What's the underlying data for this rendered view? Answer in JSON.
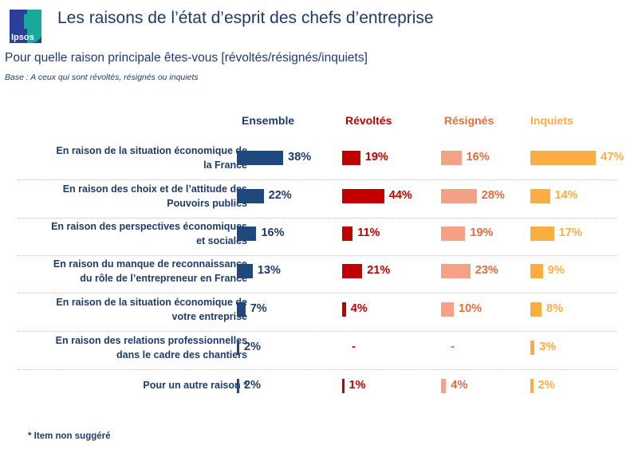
{
  "header": {
    "logo_text": "Ipsos",
    "title": "Les raisons de l’état d’esprit des chefs d’entreprise",
    "subtitle": "Pour quelle raison principale êtes-vous [révoltés/résignés/inquiets]",
    "base": "Base : A ceux qui sont révoltés, résignés ou inquiets"
  },
  "colors": {
    "Ensemble": "#1f497d",
    "Révoltés": "#c00000",
    "Résignés": "#f4a185",
    "Inquiets": "#fbad42",
    "Ensemble_text": "#1f3b6b",
    "Révoltés_text": "#c00000",
    "Résignés_text": "#e46c3f",
    "Inquiets_text": "#fbad42"
  },
  "footnote": "* Item non suggéré",
  "chart_data": {
    "type": "bar",
    "orientation": "horizontal",
    "title": "Les raisons de l’état d’esprit des chefs d’entreprise",
    "subtitle": "Pour quelle raison principale êtes-vous [révoltés/résignés/inquiets]",
    "note": "Base : A ceux qui sont révoltés, résignés ou inquiets",
    "unit": "%",
    "categories": [
      [
        "En raison de la situation économique de",
        "la France"
      ],
      [
        "En raison des choix et de l’attitude des",
        "Pouvoirs publics"
      ],
      [
        "En raison des perspectives économiques",
        "et sociales"
      ],
      [
        "En raison du manque de reconnaissance",
        "du rôle de l’entrepreneur en France"
      ],
      [
        "En raison de la situation économique de",
        "votre entreprise"
      ],
      [
        "En raison des relations professionnelles",
        "dans le cadre des chantiers"
      ],
      [
        "Pour un autre raison *"
      ]
    ],
    "series": [
      {
        "name": "Ensemble",
        "values": [
          38,
          22,
          16,
          13,
          7,
          2,
          2
        ],
        "labels": [
          "38%",
          "22%",
          "16%",
          "13%",
          "7%",
          "2%",
          "2%"
        ]
      },
      {
        "name": "Révoltés",
        "values": [
          19,
          44,
          11,
          21,
          4,
          null,
          1
        ],
        "labels": [
          "19%",
          "44%",
          "11%",
          "21%",
          "4%",
          "-",
          "1%"
        ]
      },
      {
        "name": "Résignés",
        "values": [
          16,
          28,
          19,
          23,
          10,
          null,
          4
        ],
        "labels": [
          "16%",
          "28%",
          "19%",
          "23%",
          "10%",
          "-",
          "4%"
        ]
      },
      {
        "name": "Inquiets",
        "values": [
          47,
          14,
          17,
          9,
          8,
          3,
          2
        ],
        "labels": [
          "47%",
          "14%",
          "17%",
          "9%",
          "8%",
          "3%",
          "2%"
        ]
      }
    ],
    "legend": "column-headers-top",
    "grid": false
  }
}
